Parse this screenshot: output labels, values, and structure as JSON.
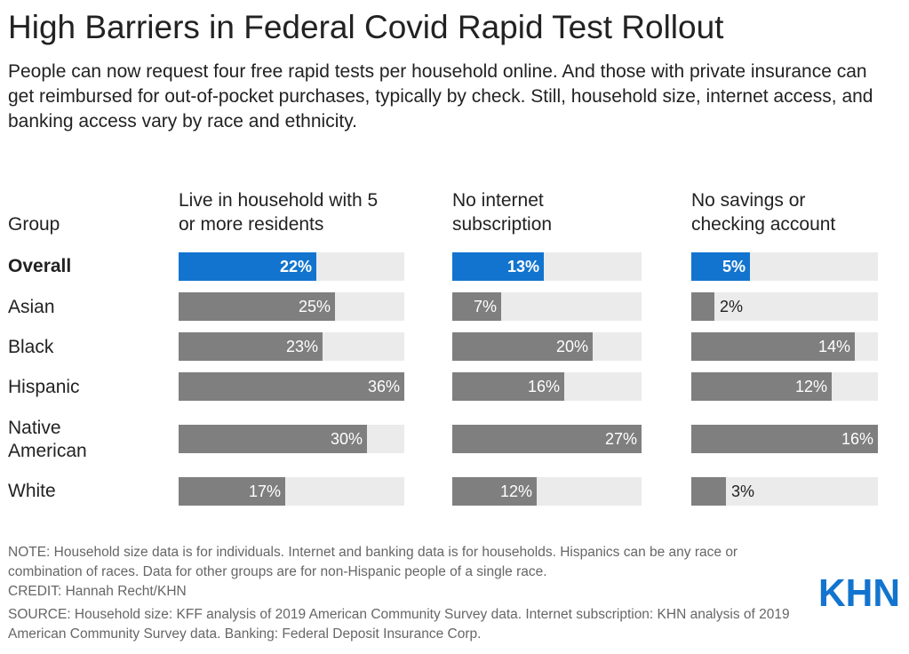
{
  "title": "High Barriers in Federal Covid Rapid Test Rollout",
  "subtitle": "People can now request four free rapid tests per household online. And those with private insurance can get reimbursed for out-of-pocket purchases, typically by check. Still, household size, internet access, and banking access vary by race and ethnicity.",
  "group_header": "Group",
  "columns": [
    {
      "lines": [
        "Live in household with 5",
        "or more residents"
      ]
    },
    {
      "lines": [
        "No internet",
        "subscription"
      ]
    },
    {
      "lines": [
        "No savings or",
        "checking account"
      ]
    }
  ],
  "rows": [
    {
      "lines": [
        "Overall"
      ],
      "highlight": true
    },
    {
      "lines": [
        "Asian"
      ],
      "highlight": false
    },
    {
      "lines": [
        "Black"
      ],
      "highlight": false
    },
    {
      "lines": [
        "Hispanic"
      ],
      "highlight": false
    },
    {
      "lines": [
        "Native",
        "American"
      ],
      "highlight": false
    },
    {
      "lines": [
        "White"
      ],
      "highlight": false
    }
  ],
  "chart_data": {
    "type": "bar",
    "orientation": "horizontal",
    "title": "High Barriers in Federal Covid Rapid Test Rollout",
    "categories": [
      "Overall",
      "Asian",
      "Black",
      "Hispanic",
      "Native American",
      "White"
    ],
    "series": [
      {
        "name": "Live in household with 5 or more residents",
        "values": [
          22,
          25,
          23,
          36,
          30,
          17
        ],
        "labels": [
          "22%",
          "25%",
          "23%",
          "36%",
          "30%",
          "17%"
        ],
        "max": 36
      },
      {
        "name": "No internet subscription",
        "values": [
          13,
          7,
          20,
          16,
          27,
          12
        ],
        "labels": [
          "13%",
          "7%",
          "20%",
          "16%",
          "27%",
          "12%"
        ],
        "max": 27
      },
      {
        "name": "No savings or checking account",
        "values": [
          5,
          2,
          14,
          12,
          16,
          3
        ],
        "labels": [
          "5%",
          "2%",
          "14%",
          "12%",
          "16%",
          "3%"
        ],
        "max": 16
      }
    ],
    "colors": {
      "highlight": "#1274cf",
      "bar": "#7f7f7f",
      "track": "#ebebeb"
    }
  },
  "footer": {
    "note": "NOTE: Household size data is for individuals. Internet and banking data is for households. Hispanics can be any race or combination of races. Data for other groups are for non-Hispanic people of a single race.",
    "credit": "CREDIT: Hannah Recht/KHN",
    "source": "SOURCE: Household size: KFF analysis of 2019 American Community Survey data. Internet subscription: KHN analysis of 2019 American Community Survey data. Banking: Federal Deposit Insurance Corp."
  },
  "logo_text": "KHN"
}
